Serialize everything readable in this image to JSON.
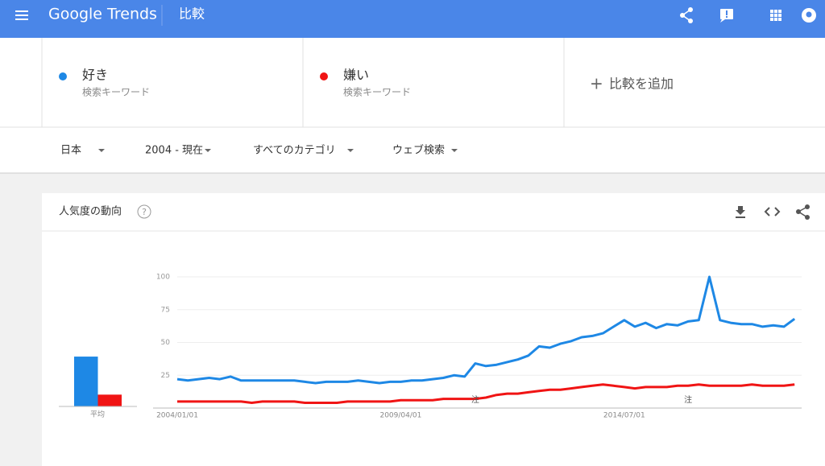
{
  "header": {
    "logo": "Google Trends",
    "page": "比較"
  },
  "terms": [
    "検索キーワード",
    "検索キーワード"
  ],
  "add_term": "比較を追加",
  "filters": [
    "日本",
    "2004 - 現在",
    "すべてのカテゴリ",
    "ウェブ検索"
  ],
  "card_title": "人気度の動向",
  "chart_data": {
    "type": "line",
    "x": [
      "2004/01/01",
      "2004/04/01",
      "2004/07/01",
      "2004/10/01",
      "2005/01/01",
      "2005/04/01",
      "2005/07/01",
      "2005/10/01",
      "2006/01/01",
      "2006/04/01",
      "2006/07/01",
      "2006/10/01",
      "2007/01/01",
      "2007/04/01",
      "2007/07/01",
      "2007/10/01",
      "2008/01/01",
      "2008/04/01",
      "2008/07/01",
      "2008/10/01",
      "2009/01/01",
      "2009/04/01",
      "2009/07/01",
      "2009/10/01",
      "2010/01/01",
      "2010/04/01",
      "2010/07/01",
      "2010/10/01",
      "2011/01/01",
      "2011/04/01",
      "2011/07/01",
      "2011/10/01",
      "2012/01/01",
      "2012/04/01",
      "2012/07/01",
      "2012/10/01",
      "2013/01/01",
      "2013/04/01",
      "2013/07/01",
      "2013/10/01",
      "2014/01/01",
      "2014/04/01",
      "2014/07/01",
      "2014/10/01",
      "2015/01/01",
      "2015/04/01",
      "2015/07/01",
      "2015/10/01",
      "2016/01/01",
      "2016/04/01",
      "2016/07/01",
      "2016/10/01",
      "2017/01/01",
      "2017/04/01",
      "2017/07/01",
      "2017/10/01",
      "2018/01/01",
      "2018/04/01",
      "2018/07/01"
    ],
    "xlim": [
      "2004/01/01",
      "2018/09/01"
    ],
    "xticks": [
      "2004/01/01",
      "2009/04/01",
      "2014/07/01"
    ],
    "ylim": [
      0,
      100
    ],
    "yticks": [
      25,
      50,
      75,
      100
    ],
    "grid": true,
    "series": [
      {
        "name": "好き",
        "color": "#1e88e5",
        "average": 38,
        "values": [
          22,
          21,
          22,
          23,
          22,
          24,
          21,
          21,
          21,
          21,
          21,
          21,
          20,
          19,
          20,
          20,
          20,
          21,
          20,
          19,
          20,
          20,
          21,
          21,
          22,
          23,
          25,
          24,
          34,
          32,
          33,
          35,
          37,
          40,
          47,
          46,
          49,
          51,
          54,
          55,
          57,
          62,
          67,
          62,
          65,
          61,
          64,
          63,
          66,
          67,
          100,
          67,
          65,
          64,
          64,
          62,
          63,
          62,
          68
        ]
      },
      {
        "name": "嫌い",
        "color": "#f01414",
        "average": 9,
        "values": [
          5,
          5,
          5,
          5,
          5,
          5,
          5,
          4,
          5,
          5,
          5,
          5,
          4,
          4,
          4,
          4,
          5,
          5,
          5,
          5,
          5,
          6,
          6,
          6,
          6,
          7,
          7,
          7,
          7,
          8,
          10,
          11,
          11,
          12,
          13,
          14,
          14,
          15,
          16,
          17,
          18,
          17,
          16,
          15,
          16,
          16,
          16,
          17,
          17,
          18,
          17,
          17,
          17,
          17,
          18,
          17,
          17,
          17,
          18
        ]
      }
    ],
    "average_label": "平均",
    "notes": [
      {
        "x": "2011/01/01",
        "label": "注"
      },
      {
        "x": "2016/01/01",
        "label": "注"
      }
    ]
  }
}
